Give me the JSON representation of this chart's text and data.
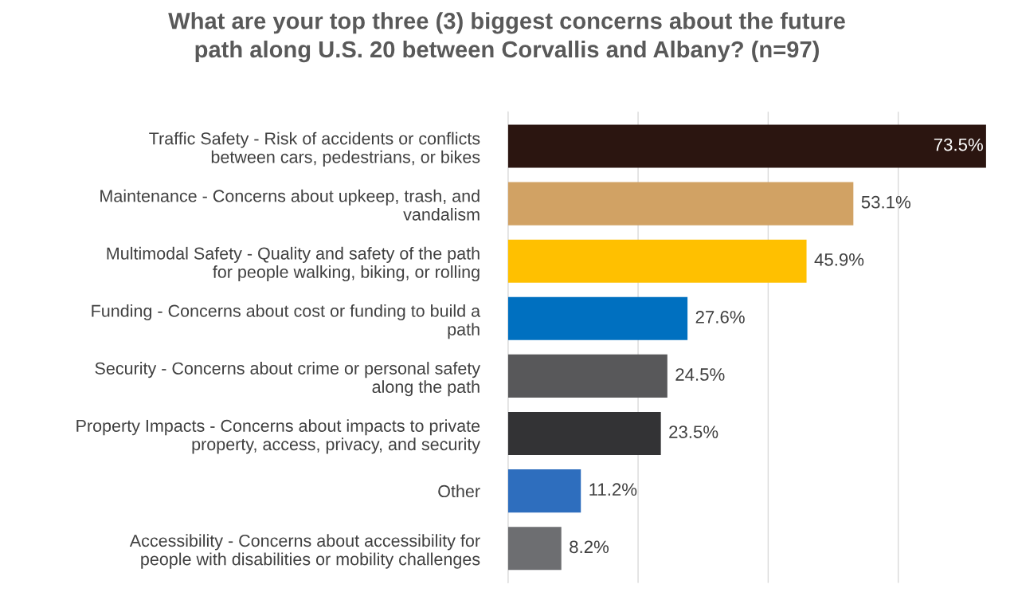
{
  "chart_data": {
    "type": "bar",
    "orientation": "horizontal",
    "title": "What are your top three (3) biggest concerns about the future path along U.S. 20 between Corvallis and Albany? (n=97)",
    "categories": [
      "Traffic Safety - Risk of accidents or conflicts between cars, pedestrians, or bikes",
      "Maintenance - Concerns about upkeep, trash, and vandalism",
      "Multimodal Safety - Quality and safety of the path for people walking, biking, or rolling",
      "Funding - Concerns about cost or funding to build a path",
      "Security - Concerns about crime or personal safety along the path",
      "Property Impacts - Concerns about impacts to private property, access, privacy, and security",
      "Other",
      "Accessibility - Concerns about accessibility for people with disabilities or mobility challenges"
    ],
    "values": [
      73.5,
      53.1,
      45.9,
      27.6,
      24.5,
      23.5,
      11.2,
      8.2
    ],
    "value_labels": [
      "73.5%",
      "53.1%",
      "45.9%",
      "27.6%",
      "24.5%",
      "23.5%",
      "11.2%",
      "8.2%"
    ],
    "colors": [
      "#2b1510",
      "#d1a264",
      "#ffc000",
      "#0070c0",
      "#58585a",
      "#333335",
      "#2e6ebe",
      "#6d6e71"
    ],
    "xticks": [
      {
        "value": 0,
        "label": null
      },
      {
        "value": 20,
        "label": null
      },
      {
        "value": 40,
        "label": null
      },
      {
        "value": 60,
        "label": null
      }
    ],
    "tick_labels": "y",
    "grid": "x",
    "legend": false
  }
}
